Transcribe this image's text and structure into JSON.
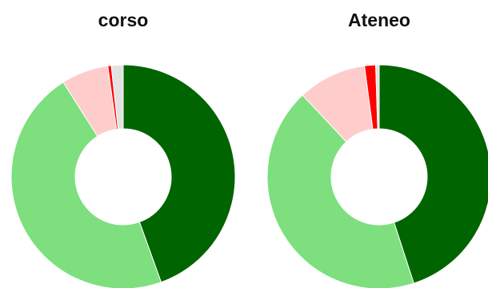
{
  "chart_data": [
    {
      "type": "pie",
      "title": "corso",
      "colors": [
        "#006400",
        "#7ddf7d",
        "#ffcccc",
        "#ff0000",
        "#e2e2e2"
      ],
      "values": [
        44.5,
        46.5,
        6.8,
        0.5,
        1.7
      ]
    },
    {
      "type": "pie",
      "title": "Ateneo",
      "colors": [
        "#006400",
        "#7ddf7d",
        "#ffcccc",
        "#ff0000",
        "#e2e2e2"
      ],
      "values": [
        45.0,
        43.0,
        9.9,
        1.6,
        0.5
      ]
    }
  ]
}
